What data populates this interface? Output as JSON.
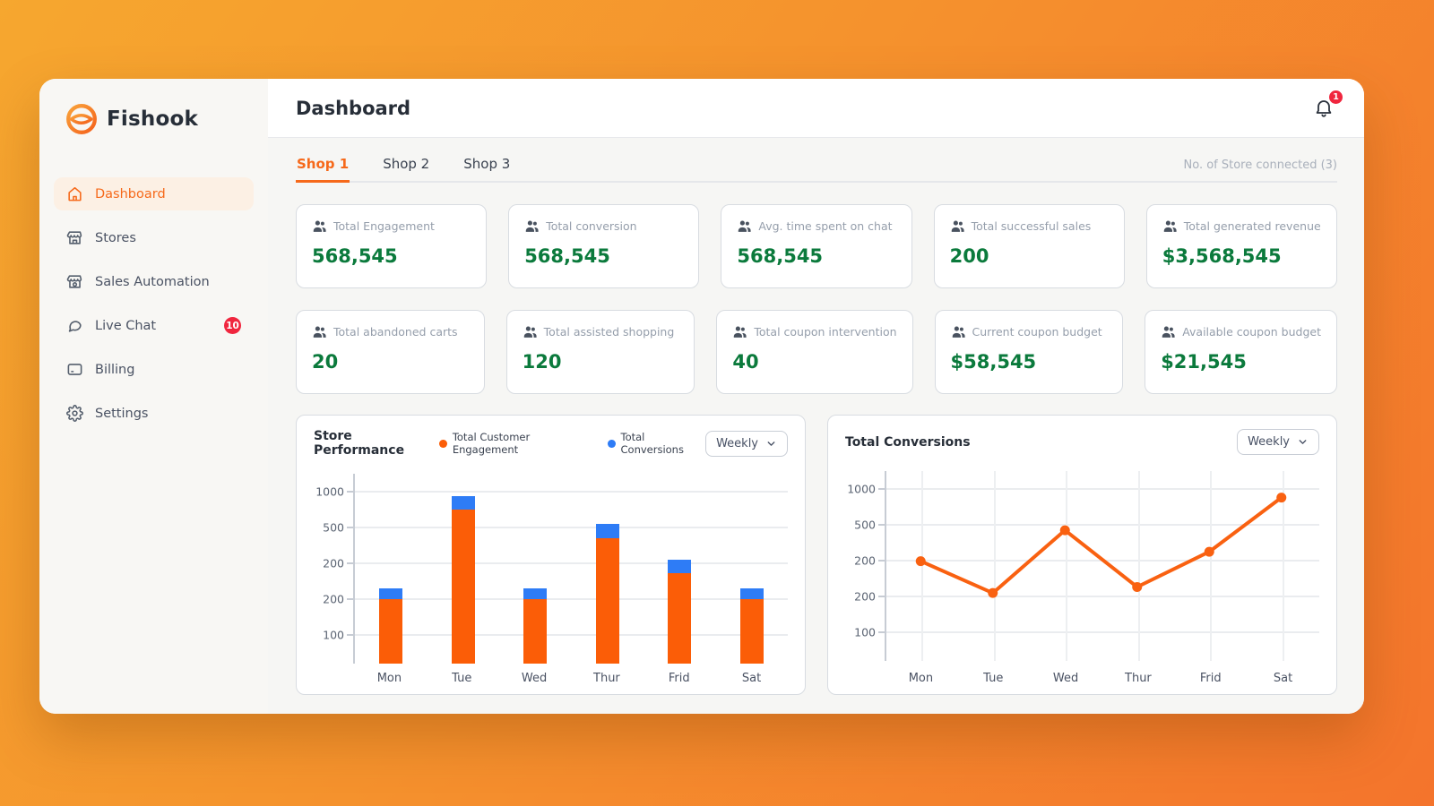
{
  "app": {
    "brand": "Fishook"
  },
  "header": {
    "title": "Dashboard",
    "notification_count": "1"
  },
  "sidebar": {
    "items": [
      {
        "label": "Dashboard",
        "icon": "home-icon",
        "active": true
      },
      {
        "label": "Stores",
        "icon": "storefront-icon"
      },
      {
        "label": "Sales Automation",
        "icon": "storefront-icon"
      },
      {
        "label": "Live Chat",
        "icon": "chat-bubble-icon",
        "badge": "10"
      },
      {
        "label": "Billing",
        "icon": "credit-card-icon"
      },
      {
        "label": "Settings",
        "icon": "gear-icon"
      }
    ]
  },
  "tabs": {
    "items": [
      "Shop 1",
      "Shop 2",
      "Shop 3"
    ],
    "active": "Shop 1",
    "store_connected": "No. of Store connected (3)"
  },
  "stats": {
    "row1": [
      {
        "icon": "people-icon",
        "label": "Total Engagement",
        "value": "568,545"
      },
      {
        "icon": "people-icon",
        "label": "Total conversion",
        "value": "568,545"
      },
      {
        "icon": "people-icon",
        "label": "Avg. time spent on chat",
        "value": "568,545"
      },
      {
        "icon": "people-icon",
        "label": "Total successful sales",
        "value": "200"
      },
      {
        "icon": "people-icon",
        "label": "Total generated revenue",
        "value": "$3,568,545"
      }
    ],
    "row2": [
      {
        "icon": "people-icon",
        "label": "Total abandoned carts",
        "value": "20"
      },
      {
        "icon": "people-icon",
        "label": "Total assisted shopping",
        "value": "120"
      },
      {
        "icon": "people-icon",
        "label": "Total coupon intervention",
        "value": "40"
      },
      {
        "icon": "people-icon",
        "label": "Current coupon budget",
        "value": "$58,545"
      },
      {
        "icon": "people-icon",
        "label": "Available coupon budget",
        "value": "$21,545"
      }
    ]
  },
  "chart_data": [
    {
      "type": "bar",
      "stacked": true,
      "title": "Store Performance",
      "categories": [
        "Mon",
        "Tue",
        "Wed",
        "Thur",
        "Frid",
        "Sat"
      ],
      "series": [
        {
          "name": "Total Customer Engagement",
          "color": "#FB5D07",
          "values": [
            375,
            895,
            375,
            730,
            525,
            375
          ]
        },
        {
          "name": "Total Conversions",
          "color": "#2E7CF6",
          "values": [
            60,
            80,
            60,
            85,
            80,
            60
          ]
        }
      ],
      "y_tick_labels": [
        "1000",
        "500",
        "200",
        "200",
        "100"
      ],
      "ylim": [
        0,
        1080
      ],
      "grid": "horizontal",
      "legend_position": "top",
      "period_selector": "Weekly"
    },
    {
      "type": "line",
      "title": "Total Conversions",
      "categories": [
        "Mon",
        "Tue",
        "Wed",
        "Thur",
        "Frid",
        "Sat"
      ],
      "series": [
        {
          "name": "Total Conversions",
          "color": "#F96111",
          "values": [
            580,
            395,
            760,
            430,
            635,
            950
          ]
        }
      ],
      "y_tick_labels": [
        "1000",
        "500",
        "200",
        "200",
        "100"
      ],
      "ylim": [
        0,
        1080
      ],
      "grid": "both",
      "legend_position": "none",
      "period_selector": "Weekly"
    }
  ],
  "colors": {
    "accent_orange": "#F6691A",
    "value_green": "#0B7A3C",
    "bar_engagement": "#FB5D07",
    "bar_conversions": "#2E7CF6",
    "line_orange": "#F96111",
    "badge_red": "#F0263E",
    "background_gradient": [
      "#F6A72F",
      "#F4742C"
    ]
  }
}
